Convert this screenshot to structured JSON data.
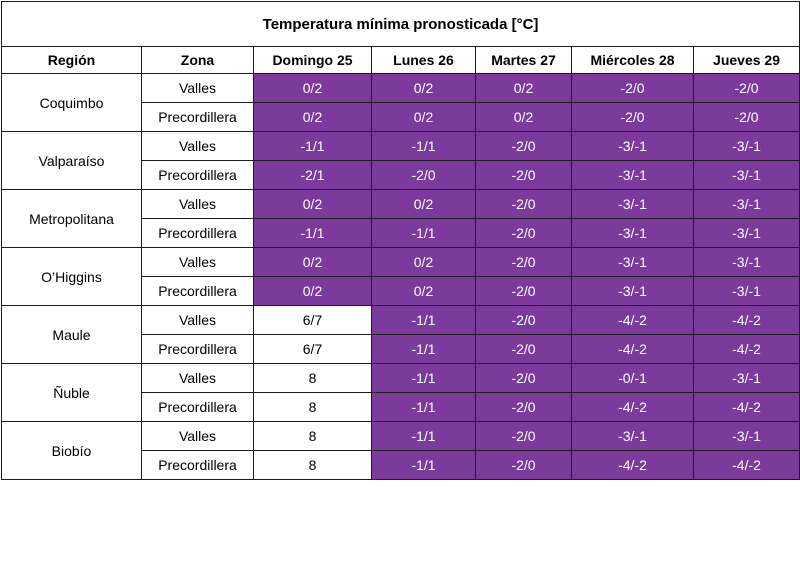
{
  "title": "Temperatura mínima pronosticada [°C]",
  "headers": {
    "region": "Región",
    "zona": "Zona",
    "days": [
      "Domingo 25",
      "Lunes 26",
      "Martes 27",
      "Miércoles 28",
      "Jueves 29"
    ]
  },
  "colors": {
    "highlight": "#7b3a9c",
    "plain": "#ffffff"
  },
  "regions": [
    {
      "name": "Coquimbo",
      "zones": [
        {
          "zona": "Valles",
          "values": [
            "0/2",
            "0/2",
            "0/2",
            "-2/0",
            "-2/0"
          ],
          "highlight": [
            true,
            true,
            true,
            true,
            true
          ]
        },
        {
          "zona": "Precordillera",
          "values": [
            "0/2",
            "0/2",
            "0/2",
            "-2/0",
            "-2/0"
          ],
          "highlight": [
            true,
            true,
            true,
            true,
            true
          ]
        }
      ]
    },
    {
      "name": "Valparaíso",
      "zones": [
        {
          "zona": "Valles",
          "values": [
            "-1/1",
            "-1/1",
            "-2/0",
            "-3/-1",
            "-3/-1"
          ],
          "highlight": [
            true,
            true,
            true,
            true,
            true
          ]
        },
        {
          "zona": "Precordillera",
          "values": [
            "-2/1",
            "-2/0",
            "-2/0",
            "-3/-1",
            "-3/-1"
          ],
          "highlight": [
            true,
            true,
            true,
            true,
            true
          ]
        }
      ]
    },
    {
      "name": "Metropolitana",
      "zones": [
        {
          "zona": "Valles",
          "values": [
            "0/2",
            "0/2",
            "-2/0",
            "-3/-1",
            "-3/-1"
          ],
          "highlight": [
            true,
            true,
            true,
            true,
            true
          ]
        },
        {
          "zona": "Precordillera",
          "values": [
            "-1/1",
            "-1/1",
            "-2/0",
            "-3/-1",
            "-3/-1"
          ],
          "highlight": [
            true,
            true,
            true,
            true,
            true
          ]
        }
      ]
    },
    {
      "name": "O’Higgins",
      "zones": [
        {
          "zona": "Valles",
          "values": [
            "0/2",
            "0/2",
            "-2/0",
            "-3/-1",
            "-3/-1"
          ],
          "highlight": [
            true,
            true,
            true,
            true,
            true
          ]
        },
        {
          "zona": "Precordillera",
          "values": [
            "0/2",
            "0/2",
            "-2/0",
            "-3/-1",
            "-3/-1"
          ],
          "highlight": [
            true,
            true,
            true,
            true,
            true
          ]
        }
      ]
    },
    {
      "name": "Maule",
      "zones": [
        {
          "zona": "Valles",
          "values": [
            "6/7",
            "-1/1",
            "-2/0",
            "-4/-2",
            "-4/-2"
          ],
          "highlight": [
            false,
            true,
            true,
            true,
            true
          ]
        },
        {
          "zona": "Precordillera",
          "values": [
            "6/7",
            "-1/1",
            "-2/0",
            "-4/-2",
            "-4/-2"
          ],
          "highlight": [
            false,
            true,
            true,
            true,
            true
          ]
        }
      ]
    },
    {
      "name": "Ñuble",
      "zones": [
        {
          "zona": "Valles",
          "values": [
            "8",
            "-1/1",
            "-2/0",
            "-0/-1",
            "-3/-1"
          ],
          "highlight": [
            false,
            true,
            true,
            true,
            true
          ]
        },
        {
          "zona": "Precordillera",
          "values": [
            "8",
            "-1/1",
            "-2/0",
            "-4/-2",
            "-4/-2"
          ],
          "highlight": [
            false,
            true,
            true,
            true,
            true
          ]
        }
      ]
    },
    {
      "name": "Biobío",
      "zones": [
        {
          "zona": "Valles",
          "values": [
            "8",
            "-1/1",
            "-2/0",
            "-3/-1",
            "-3/-1"
          ],
          "highlight": [
            false,
            true,
            true,
            true,
            true
          ]
        },
        {
          "zona": "Precordillera",
          "values": [
            "8",
            "-1/1",
            "-2/0",
            "-4/-2",
            "-4/-2"
          ],
          "highlight": [
            false,
            true,
            true,
            true,
            true
          ]
        }
      ]
    }
  ]
}
